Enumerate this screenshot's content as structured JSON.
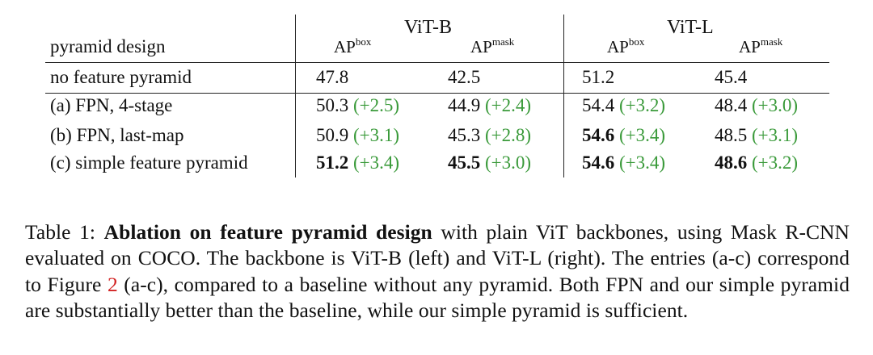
{
  "table": {
    "row_header": "pyramid design",
    "groups": [
      {
        "name": "ViT-B",
        "metrics": [
          {
            "base": "AP",
            "sup": "box"
          },
          {
            "base": "AP",
            "sup": "mask"
          }
        ]
      },
      {
        "name": "ViT-L",
        "metrics": [
          {
            "base": "AP",
            "sup": "box"
          },
          {
            "base": "AP",
            "sup": "mask"
          }
        ]
      }
    ],
    "rows": [
      {
        "label": "no feature pyramid",
        "cells": [
          {
            "value": "47.8",
            "delta": "",
            "bold": false
          },
          {
            "value": "42.5",
            "delta": "",
            "bold": false
          },
          {
            "value": "51.2",
            "delta": "",
            "bold": false
          },
          {
            "value": "45.4",
            "delta": "",
            "bold": false
          }
        ]
      },
      {
        "label": "(a) FPN, 4-stage",
        "cells": [
          {
            "value": "50.3",
            "delta": "(+2.5)",
            "bold": false
          },
          {
            "value": "44.9",
            "delta": "(+2.4)",
            "bold": false
          },
          {
            "value": "54.4",
            "delta": "(+3.2)",
            "bold": false
          },
          {
            "value": "48.4",
            "delta": "(+3.0)",
            "bold": false
          }
        ]
      },
      {
        "label": "(b) FPN, last-map",
        "cells": [
          {
            "value": "50.9",
            "delta": "(+3.1)",
            "bold": false
          },
          {
            "value": "45.3",
            "delta": "(+2.8)",
            "bold": false
          },
          {
            "value": "54.6",
            "delta": "(+3.4)",
            "bold": true
          },
          {
            "value": "48.5",
            "delta": "(+3.1)",
            "bold": false
          }
        ]
      },
      {
        "label": "(c) simple feature pyramid",
        "cells": [
          {
            "value": "51.2",
            "delta": "(+3.4)",
            "bold": true
          },
          {
            "value": "45.5",
            "delta": "(+3.0)",
            "bold": true
          },
          {
            "value": "54.6",
            "delta": "(+3.4)",
            "bold": true
          },
          {
            "value": "48.6",
            "delta": "(+3.2)",
            "bold": true
          }
        ]
      }
    ],
    "delta_color": "#3a9a3a"
  },
  "caption": {
    "label": "Table 1: ",
    "bold_title": "Ablation on feature pyramid design",
    "text_1": " with plain ViT backbones, using Mask R-CNN evaluated on COCO. The backbone is ViT-B (left) and ViT-L (right). The entries (a-c) correspond to Figure ",
    "figure_ref": "2",
    "text_2": " (a-c), compared to a baseline without any pyramid. Both FPN and our simple pyramid are substantially better than the baseline, while our simple pyramid is sufficient.",
    "ref_color": "#d22222"
  }
}
